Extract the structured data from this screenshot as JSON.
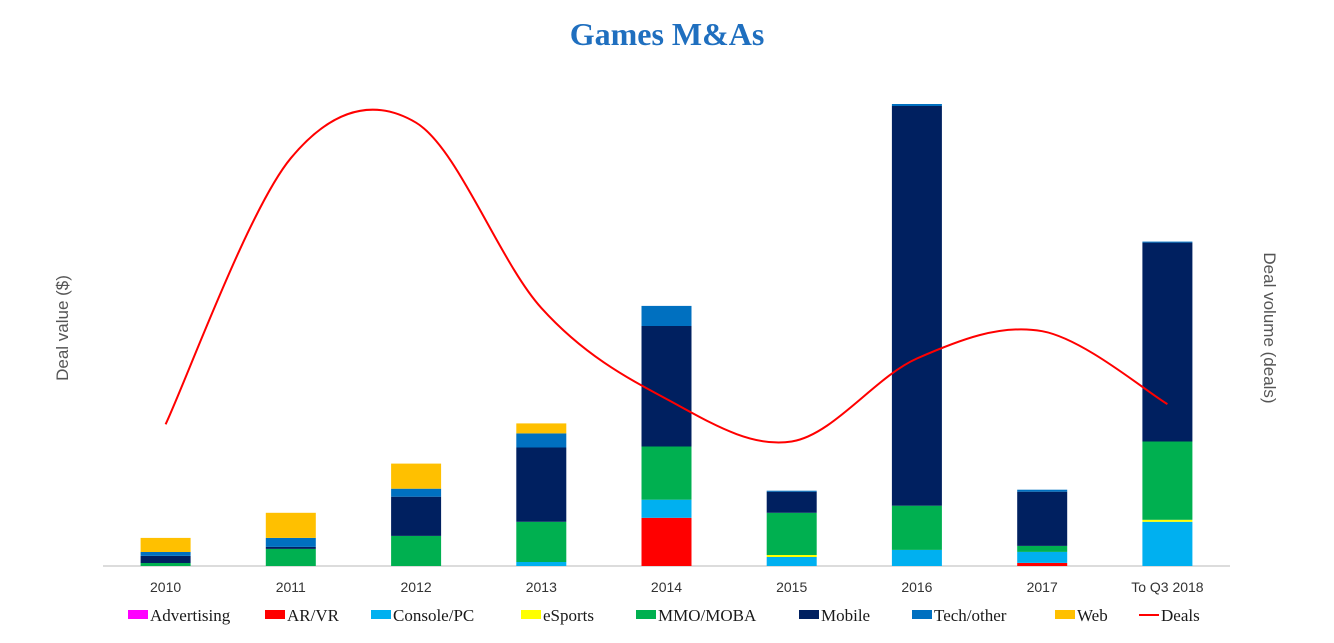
{
  "chart_data": {
    "type": "bar",
    "stacked": true,
    "title": "Games M&As",
    "ylabel_left": "Deal value ($)",
    "ylabel_right": "Deal volume (deals)",
    "categories": [
      "2010",
      "2011",
      "2012",
      "2013",
      "2014",
      "2015",
      "2016",
      "2017",
      "To Q3 2018"
    ],
    "ylim": [
      0,
      460
    ],
    "series": [
      {
        "name": "Advertising",
        "color": "#ff00ff",
        "values": [
          0,
          0,
          0,
          0,
          0,
          0,
          0,
          0,
          0
        ]
      },
      {
        "name": "AR/VR",
        "color": "#ff0000",
        "values": [
          0,
          0,
          0,
          0,
          48,
          0,
          0,
          3,
          0
        ]
      },
      {
        "name": "Console/PC",
        "color": "#00b0f0",
        "values": [
          0,
          0,
          0,
          4,
          18,
          9,
          16,
          11,
          44
        ]
      },
      {
        "name": "eSports",
        "color": "#ffff00",
        "values": [
          0,
          0,
          0,
          0,
          0,
          2,
          0,
          0,
          2
        ]
      },
      {
        "name": "MMO/MOBA",
        "color": "#00b050",
        "values": [
          3,
          17,
          30,
          40,
          53,
          42,
          44,
          6,
          78
        ]
      },
      {
        "name": "Mobile",
        "color": "#002060",
        "values": [
          7,
          2,
          39,
          74,
          120,
          21,
          398,
          54,
          198
        ]
      },
      {
        "name": "Tech/other",
        "color": "#0070c0",
        "values": [
          4,
          9,
          8,
          14,
          20,
          1,
          2,
          2,
          1
        ]
      },
      {
        "name": "Web",
        "color": "#ffc000",
        "values": [
          14,
          25,
          25,
          10,
          0,
          0,
          0,
          0,
          0
        ]
      }
    ],
    "line": {
      "name": "Deals",
      "color": "#ff0000",
      "values": [
        140,
        403,
        438,
        255,
        165,
        123,
        205,
        232,
        160
      ],
      "smooth": true
    },
    "grid": false,
    "legend_position": "bottom"
  }
}
